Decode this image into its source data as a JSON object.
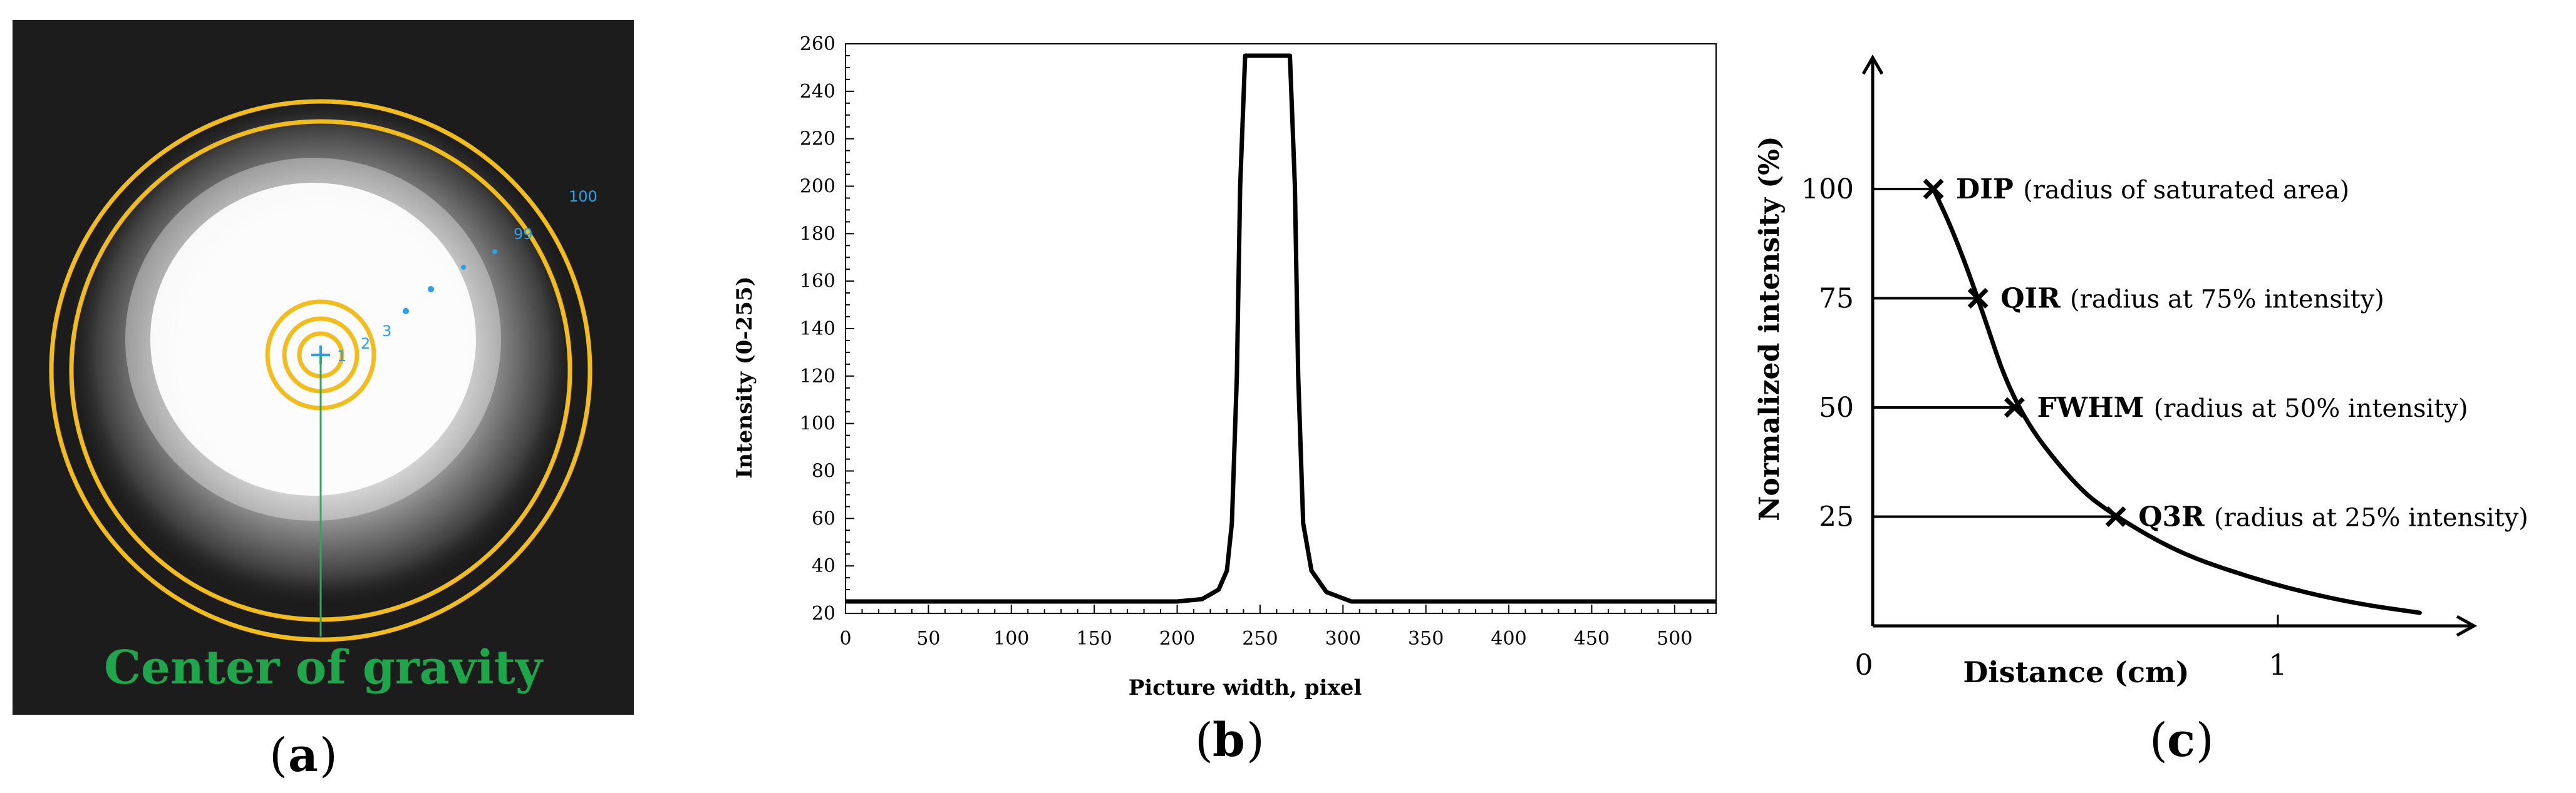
{
  "panel_a": {
    "caption_letter": "a",
    "label": "Center of gravity",
    "ring_labels": [
      "1",
      "2",
      "3",
      "99",
      "100"
    ],
    "colors": {
      "ring": "#f2bd1c",
      "label": "#1fa64a",
      "marker": "#2aa0e6",
      "background": "#1c1c1c"
    }
  },
  "panel_b": {
    "caption_letter": "b"
  },
  "panel_c": {
    "caption_letter": "c",
    "origin_label": "0",
    "x_tick_label": "1",
    "xlabel": "Distance (cm)",
    "ylabel": "Normalized intensity (%)",
    "annotations": [
      {
        "y": 100,
        "name": "DIP",
        "desc": "(radius of saturated area)"
      },
      {
        "y": 75,
        "name": "QIR",
        "desc": "(radius at 75% intensity)"
      },
      {
        "y": 50,
        "name": "FWHM",
        "desc": "(radius at 50% intensity)"
      },
      {
        "y": 25,
        "name": "Q3R",
        "desc": "(radius at 25% intensity)"
      }
    ]
  },
  "chart_data": [
    {
      "type": "line",
      "xlabel": "Picture width, pixel",
      "ylabel": "Intensity (0-255)",
      "xlim": [
        0,
        525
      ],
      "ylim": [
        20,
        260
      ],
      "xticks": [
        0,
        50,
        100,
        150,
        200,
        250,
        300,
        350,
        400,
        450,
        500
      ],
      "yticks": [
        20,
        40,
        60,
        80,
        100,
        120,
        140,
        160,
        180,
        200,
        220,
        240,
        260
      ],
      "grid": false,
      "x": [
        0,
        200,
        215,
        225,
        230,
        233,
        236,
        238,
        241,
        255,
        268,
        271,
        273,
        276,
        281,
        290,
        305,
        525
      ],
      "y": [
        25,
        25,
        26,
        30,
        38,
        58,
        120,
        200,
        255,
        255,
        255,
        200,
        120,
        58,
        38,
        29,
        25,
        25
      ]
    },
    {
      "type": "line",
      "xlabel": "Distance (cm)",
      "ylabel": "Normalized intensity (%)",
      "xticks": [
        0,
        1
      ],
      "yticks": [
        25,
        50,
        75,
        100
      ],
      "grid": false,
      "x": [
        0.15,
        0.2,
        0.26,
        0.35,
        0.5,
        0.6,
        0.75,
        0.9,
        1.05,
        1.2,
        1.35
      ],
      "y": [
        100,
        90,
        75,
        50,
        32,
        25,
        17,
        12,
        8,
        5,
        3
      ]
    }
  ]
}
